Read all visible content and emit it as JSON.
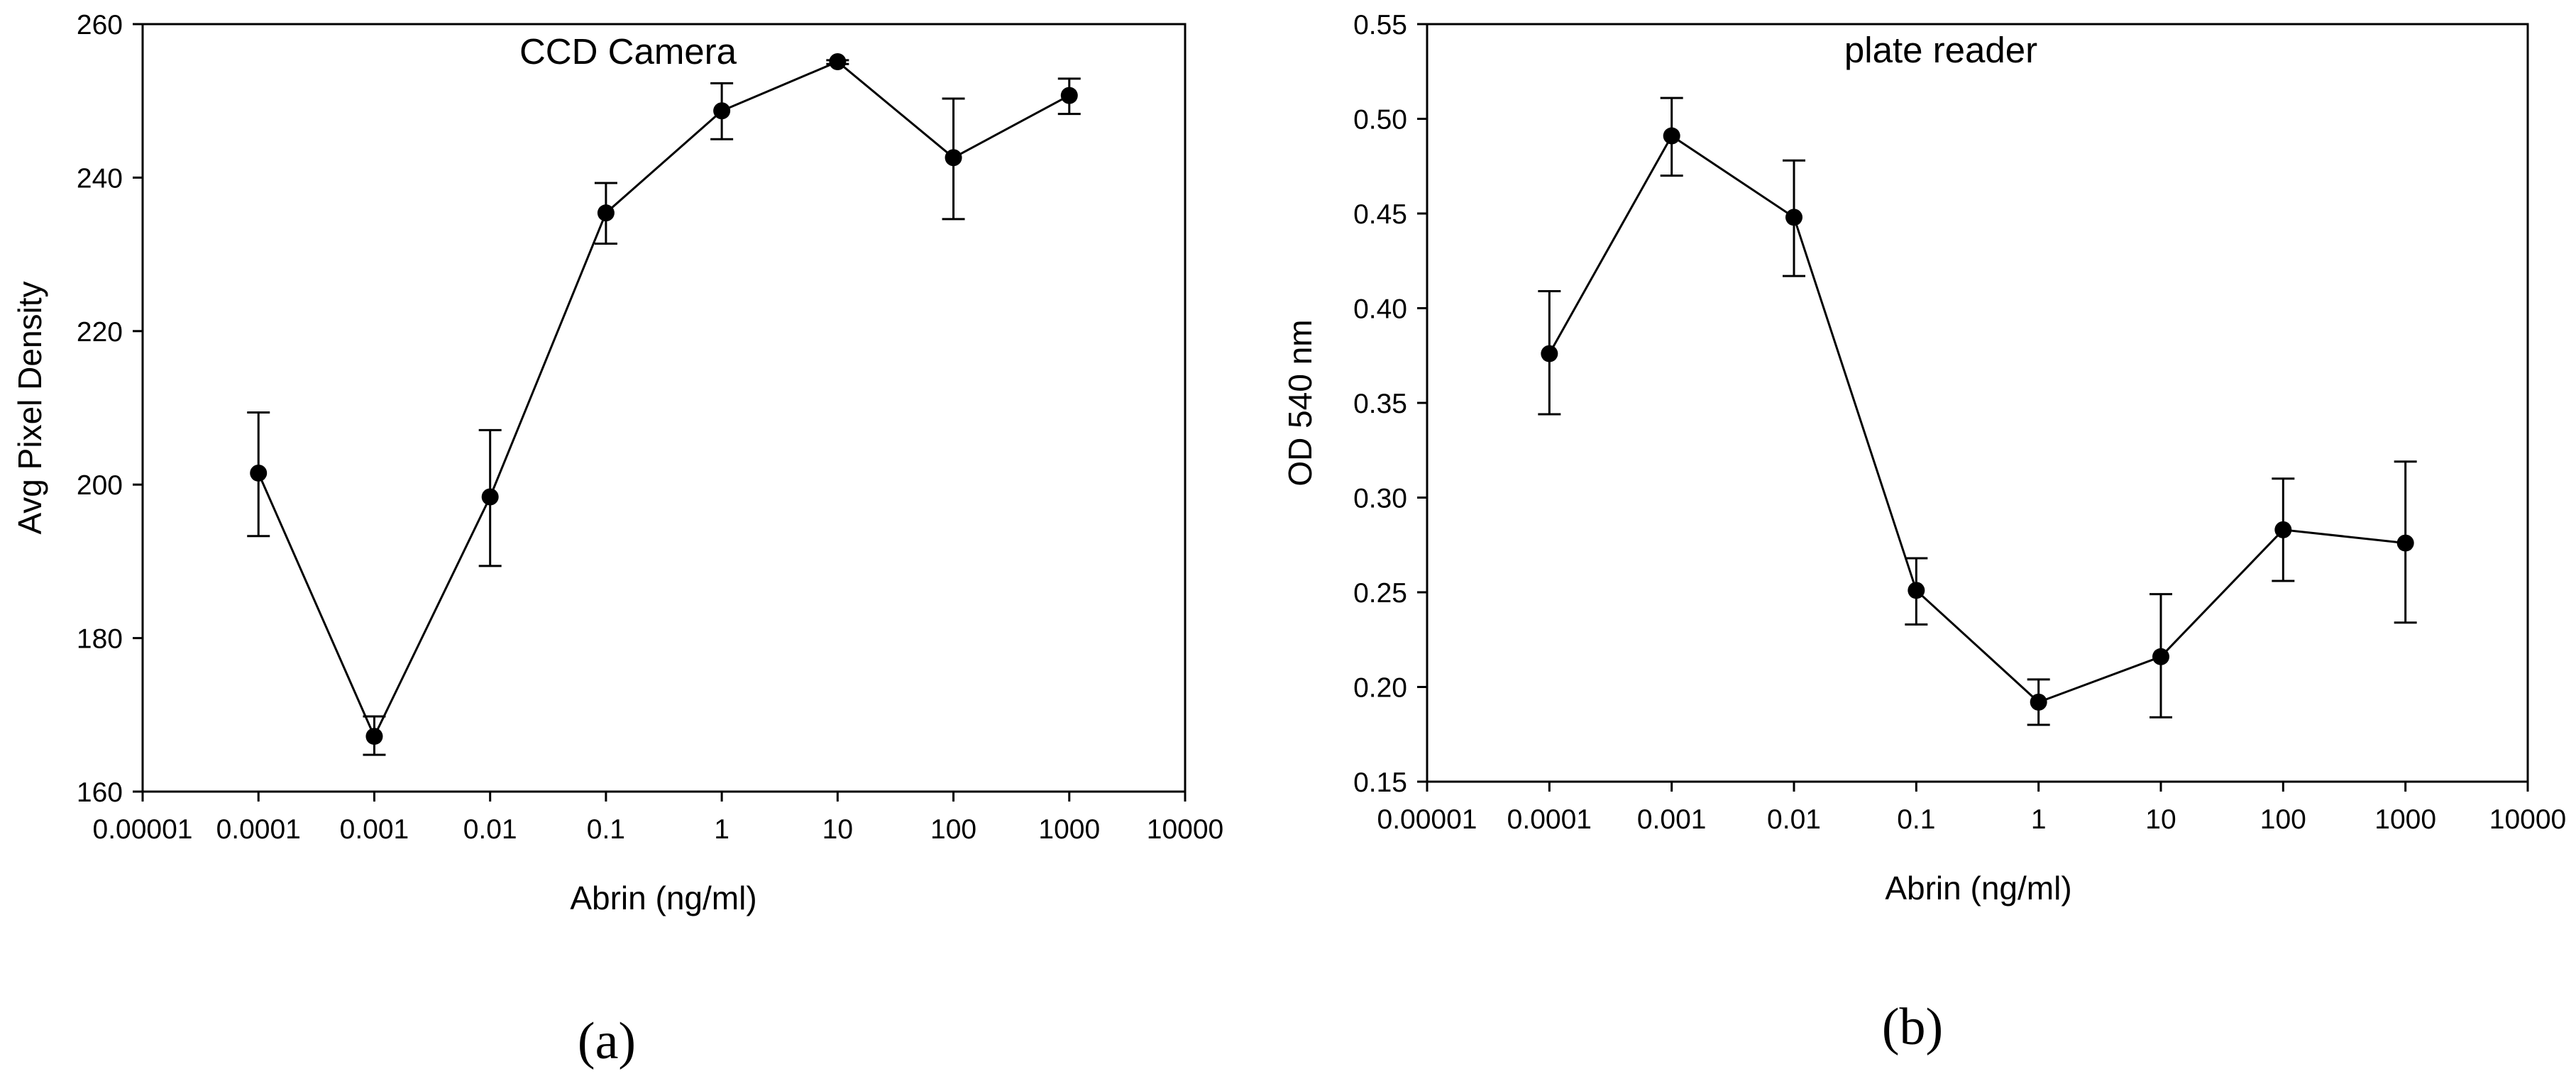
{
  "chart_data": [
    {
      "type": "scatter",
      "title": "CCD Camera",
      "panel_label": "(a)",
      "xlabel": "Abrin (ng/ml)",
      "ylabel": "Avg Pixel Density",
      "xscale": "log",
      "xlim": [
        1e-05,
        10000
      ],
      "ylim": [
        160,
        260
      ],
      "xticks": [
        1e-05,
        0.0001,
        0.001,
        0.01,
        0.1,
        1,
        10,
        100,
        1000,
        10000
      ],
      "xtick_labels": [
        "0.00001",
        "0.0001",
        "0.001",
        "0.01",
        "0.1",
        "1",
        "10",
        "100",
        "1000",
        "10000"
      ],
      "yticks": [
        160,
        180,
        200,
        220,
        240,
        260
      ],
      "ytick_labels": [
        "160",
        "180",
        "200",
        "220",
        "240",
        "260"
      ],
      "x": [
        0.0001,
        0.001,
        0.01,
        0.1,
        1,
        10,
        100,
        1000
      ],
      "y": [
        201.5,
        167.2,
        198.4,
        235.4,
        248.7,
        255.1,
        242.6,
        250.7
      ],
      "err_low": [
        193.3,
        164.8,
        189.4,
        231.4,
        245.0,
        254.8,
        234.6,
        248.3
      ],
      "err_high": [
        209.4,
        169.8,
        207.1,
        239.3,
        252.3,
        255.3,
        250.3,
        252.9
      ],
      "grid": false
    },
    {
      "type": "scatter",
      "title": "plate reader",
      "panel_label": "(b)",
      "xlabel": "Abrin (ng/ml)",
      "ylabel": "OD 540 nm",
      "xscale": "log",
      "xlim": [
        1e-05,
        10000
      ],
      "ylim": [
        0.15,
        0.55
      ],
      "xticks": [
        1e-05,
        0.0001,
        0.001,
        0.01,
        0.1,
        1,
        10,
        100,
        1000,
        10000
      ],
      "xtick_labels": [
        "0.00001",
        "0.0001",
        "0.001",
        "0.01",
        "0.1",
        "1",
        "10",
        "100",
        "1000",
        "10000"
      ],
      "yticks": [
        0.15,
        0.2,
        0.25,
        0.3,
        0.35,
        0.4,
        0.45,
        0.5,
        0.55
      ],
      "ytick_labels": [
        "0.15",
        "0.20",
        "0.25",
        "0.30",
        "0.35",
        "0.40",
        "0.45",
        "0.50",
        "0.55"
      ],
      "x": [
        0.0001,
        0.001,
        0.01,
        0.1,
        1,
        10,
        100,
        1000
      ],
      "y": [
        0.376,
        0.491,
        0.448,
        0.251,
        0.192,
        0.216,
        0.283,
        0.276
      ],
      "err_low": [
        0.344,
        0.47,
        0.417,
        0.233,
        0.18,
        0.184,
        0.256,
        0.234
      ],
      "err_high": [
        0.409,
        0.511,
        0.478,
        0.268,
        0.204,
        0.249,
        0.31,
        0.319
      ],
      "grid": false
    }
  ]
}
